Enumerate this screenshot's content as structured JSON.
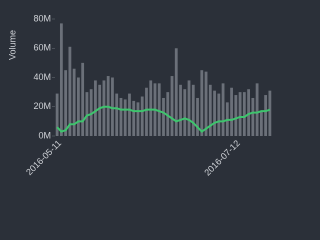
{
  "chart_data": {
    "type": "bar",
    "y_label": "Volume",
    "categories": [
      "2016-05-11",
      null,
      null,
      null,
      null,
      null,
      null,
      null,
      null,
      null,
      null,
      null,
      null,
      null,
      null,
      null,
      null,
      null,
      null,
      null,
      null,
      null,
      null,
      null,
      null,
      null,
      null,
      null,
      null,
      null,
      null,
      null,
      null,
      null,
      null,
      null,
      null,
      null,
      null,
      null,
      null,
      null,
      "2016-07-12",
      null,
      null,
      null,
      null,
      null,
      null,
      null,
      null
    ],
    "series": [
      {
        "color": "#6b7079",
        "values": [
          29,
          77,
          45,
          61,
          46,
          40,
          50,
          30,
          32,
          38,
          35,
          38,
          41,
          40,
          29,
          26,
          25,
          29,
          24,
          23,
          27,
          33,
          38,
          36,
          36,
          26,
          30,
          41,
          60,
          35,
          32,
          38,
          35,
          26,
          45,
          44,
          35,
          31,
          29,
          36,
          23,
          33,
          28,
          30,
          30,
          32,
          26,
          36,
          17,
          28,
          31
        ]
      },
      {
        "type": "line",
        "color": "#3ec46d",
        "values": [
          6,
          3,
          4,
          8,
          8,
          10,
          10,
          14,
          15,
          17,
          19,
          20,
          20,
          19,
          19,
          18,
          18,
          18,
          17,
          17,
          17,
          18,
          18,
          18,
          17,
          16,
          14,
          12,
          10,
          11,
          12,
          11,
          9,
          6,
          3,
          5,
          7,
          9,
          10,
          10,
          11,
          11,
          12,
          13,
          13,
          15,
          16,
          16,
          17,
          17,
          18
        ]
      }
    ],
    "ylim": [
      0,
      80
    ],
    "yticks": [
      {
        "value": 0,
        "label": "0M"
      },
      {
        "value": 20,
        "label": "20M"
      },
      {
        "value": 40,
        "label": "40M"
      },
      {
        "value": 60,
        "label": "60M"
      },
      {
        "value": 80,
        "label": "80M"
      }
    ]
  }
}
